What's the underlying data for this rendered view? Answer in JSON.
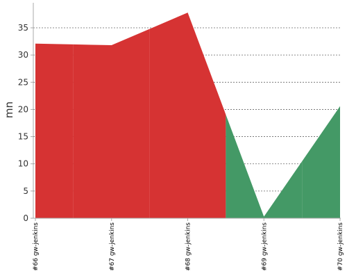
{
  "chart_data": {
    "type": "area",
    "y_label": "mn",
    "categories": [
      "#66 gw-jenkins",
      "#67 gw-jenkins",
      "#68 gw-jenkins",
      "#69 gw-jenkins",
      "#70 gw-jenkins"
    ],
    "values": [
      32.1,
      31.8,
      37.8,
      0.3,
      20.6
    ],
    "point_colors": [
      "#d63333",
      "#d63333",
      "#d63333",
      "#449966",
      "#449966"
    ],
    "ylim": [
      0,
      39.6
    ],
    "yticks": [
      0,
      5,
      10,
      15,
      20,
      25,
      30,
      35
    ],
    "grid": true
  }
}
